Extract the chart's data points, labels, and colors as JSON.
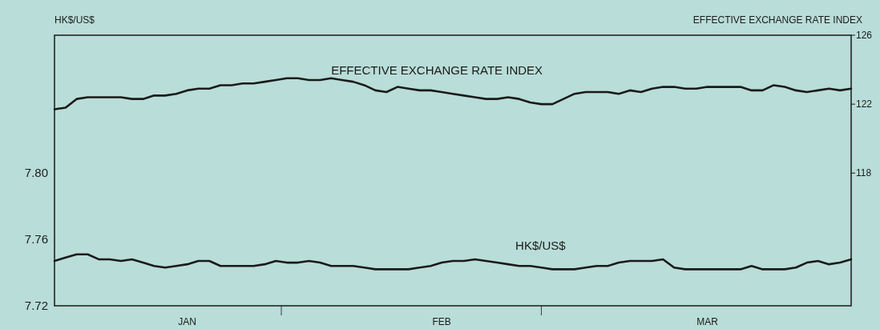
{
  "chart_data": {
    "type": "line",
    "ylabel": "HK$/US$",
    "y2label": "EFFECTIVE EXCHANGE RATE INDEX",
    "categories": [
      null,
      null,
      null,
      null,
      null,
      null,
      null,
      null,
      null,
      null,
      null,
      null,
      "JAN",
      null,
      null,
      null,
      null,
      null,
      null,
      null,
      null,
      null,
      null,
      null,
      null,
      null,
      null,
      null,
      null,
      null,
      null,
      null,
      null,
      null,
      null,
      "FEB",
      null,
      null,
      null,
      null,
      null,
      null,
      null,
      null,
      null,
      null,
      null,
      null,
      null,
      null,
      null,
      null,
      null,
      null,
      null,
      null,
      null,
      null,
      null,
      "MAR",
      null,
      null,
      null,
      null,
      null,
      null,
      null,
      null,
      null,
      null,
      null,
      null,
      null
    ],
    "ylim": [
      7.72,
      7.883
    ],
    "yticks": [
      7.72,
      7.76,
      {
        "value": 7.8,
        "label": "7.80"
      }
    ],
    "y2lim": [
      110.3,
      126
    ],
    "y2ticks": [
      118,
      122,
      126
    ],
    "grid": false,
    "legend": false,
    "marker": "none",
    "line_style": "solid",
    "series": [
      {
        "name": "EFFECTIVE EXCHANGE RATE INDEX",
        "color": "#1a1a1a",
        "axis": "y2",
        "values": [
          121.7,
          121.8,
          122.3,
          122.4,
          122.4,
          122.4,
          122.4,
          122.3,
          122.3,
          122.5,
          122.5,
          122.6,
          122.8,
          122.9,
          122.9,
          123.1,
          123.1,
          123.2,
          123.2,
          123.3,
          123.4,
          123.5,
          123.5,
          123.4,
          123.4,
          123.5,
          123.4,
          123.3,
          123.1,
          122.8,
          122.7,
          123.0,
          122.9,
          122.8,
          122.8,
          122.7,
          122.6,
          122.5,
          122.4,
          122.3,
          122.3,
          122.4,
          122.3,
          122.1,
          122.0,
          122.0,
          122.3,
          122.6,
          122.7,
          122.7,
          122.7,
          122.6,
          122.8,
          122.7,
          122.9,
          123.0,
          123.0,
          122.9,
          122.9,
          123.0,
          123.0,
          123.0,
          123.0,
          122.8,
          122.8,
          123.1,
          123.0,
          122.8,
          122.7,
          122.8,
          122.9,
          122.8,
          122.9
        ]
      },
      {
        "name": "HK$/US$",
        "color": "#1a1a1a",
        "values": [
          7.747,
          7.749,
          7.751,
          7.751,
          7.748,
          7.748,
          7.747,
          7.748,
          7.746,
          7.744,
          7.743,
          7.744,
          7.745,
          7.747,
          7.747,
          7.744,
          7.744,
          7.744,
          7.744,
          7.745,
          7.747,
          7.746,
          7.746,
          7.747,
          7.746,
          7.744,
          7.744,
          7.744,
          7.743,
          7.742,
          7.742,
          7.742,
          7.742,
          7.743,
          7.744,
          7.746,
          7.747,
          7.747,
          7.748,
          7.747,
          7.746,
          7.745,
          7.744,
          7.744,
          7.743,
          7.742,
          7.742,
          7.742,
          7.743,
          7.744,
          7.744,
          7.746,
          7.747,
          7.747,
          7.747,
          7.748,
          7.743,
          7.742,
          7.742,
          7.742,
          7.742,
          7.742,
          7.742,
          7.744,
          7.742,
          7.742,
          7.742,
          7.743,
          7.746,
          7.747,
          7.745,
          7.746,
          7.748
        ]
      }
    ]
  }
}
